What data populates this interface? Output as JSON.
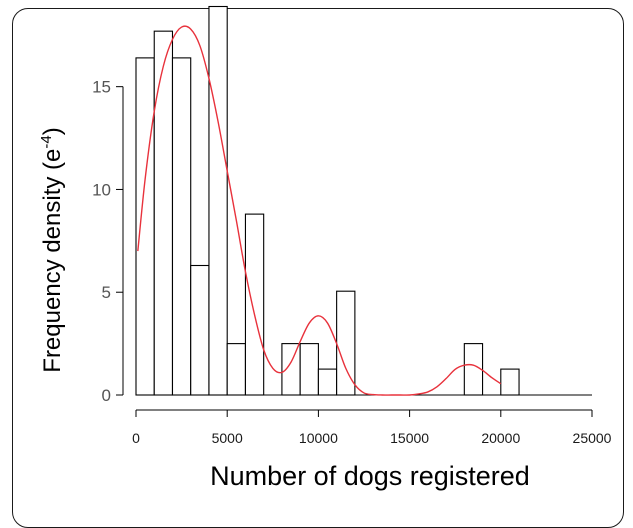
{
  "chart_data": {
    "type": "bar",
    "xlabel": "Number of dogs registered",
    "ylabel_main": "Frequency density (e",
    "ylabel_sup": "-4",
    "ylabel_close": ")",
    "xlim": [
      0,
      25000
    ],
    "ylim": [
      0,
      18
    ],
    "x_ticks": [
      0,
      5000,
      10000,
      15000,
      20000,
      25000
    ],
    "x_tick_labels": [
      "0",
      "5000",
      "10000",
      "15000",
      "20000",
      "25000"
    ],
    "y_ticks": [
      0,
      5,
      10,
      15
    ],
    "y_tick_labels": [
      "0",
      "5",
      "10",
      "15"
    ],
    "bin_width": 1000,
    "bins": [
      {
        "x0": 0,
        "x1": 1000,
        "value": 16.4
      },
      {
        "x0": 1000,
        "x1": 2000,
        "value": 17.7
      },
      {
        "x0": 2000,
        "x1": 3000,
        "value": 16.4
      },
      {
        "x0": 3000,
        "x1": 4000,
        "value": 6.3
      },
      {
        "x0": 4000,
        "x1": 5000,
        "value": 18.9
      },
      {
        "x0": 5000,
        "x1": 6000,
        "value": 2.5
      },
      {
        "x0": 6000,
        "x1": 7000,
        "value": 8.8
      },
      {
        "x0": 7000,
        "x1": 8000,
        "value": 0
      },
      {
        "x0": 8000,
        "x1": 9000,
        "value": 2.5
      },
      {
        "x0": 9000,
        "x1": 10000,
        "value": 2.5
      },
      {
        "x0": 10000,
        "x1": 11000,
        "value": 1.26
      },
      {
        "x0": 11000,
        "x1": 12000,
        "value": 5.05
      },
      {
        "x0": 12000,
        "x1": 13000,
        "value": 0
      },
      {
        "x0": 13000,
        "x1": 14000,
        "value": 0
      },
      {
        "x0": 14000,
        "x1": 15000,
        "value": 0
      },
      {
        "x0": 15000,
        "x1": 16000,
        "value": 0
      },
      {
        "x0": 16000,
        "x1": 17000,
        "value": 0
      },
      {
        "x0": 17000,
        "x1": 18000,
        "value": 0
      },
      {
        "x0": 18000,
        "x1": 19000,
        "value": 2.5
      },
      {
        "x0": 19000,
        "x1": 20000,
        "value": 0
      },
      {
        "x0": 20000,
        "x1": 21000,
        "value": 1.26
      },
      {
        "x0": 21000,
        "x1": 22000,
        "value": 0
      },
      {
        "x0": 22000,
        "x1": 23000,
        "value": 0
      },
      {
        "x0": 23000,
        "x1": 24000,
        "value": 0
      },
      {
        "x0": 24000,
        "x1": 25000,
        "value": 0
      }
    ],
    "density_curve": {
      "color": "#e8323c",
      "x": [
        100,
        500,
        1000,
        1500,
        2000,
        2500,
        3000,
        3500,
        4000,
        4500,
        5000,
        5500,
        6000,
        6500,
        7000,
        7500,
        8000,
        8500,
        9000,
        9500,
        10000,
        10500,
        11000,
        11500,
        12000,
        12500,
        13000,
        13500,
        14000,
        14500,
        15000,
        15500,
        16000,
        16500,
        17000,
        17500,
        18000,
        18500,
        19000,
        19500,
        20000
      ],
      "y": [
        7.0,
        10.5,
        13.8,
        16.0,
        17.3,
        17.9,
        17.8,
        17.0,
        15.4,
        13.3,
        10.9,
        8.5,
        6.0,
        3.9,
        2.2,
        1.3,
        1.1,
        1.6,
        2.6,
        3.5,
        3.85,
        3.5,
        2.5,
        1.3,
        0.5,
        0.1,
        0.02,
        0.0,
        0.0,
        0.0,
        0.0,
        0.05,
        0.15,
        0.4,
        0.8,
        1.25,
        1.45,
        1.45,
        1.2,
        0.85,
        0.55
      ]
    },
    "bar_fill": "#ffffff",
    "bar_stroke": "#000000",
    "grid": false,
    "legend": "none"
  }
}
